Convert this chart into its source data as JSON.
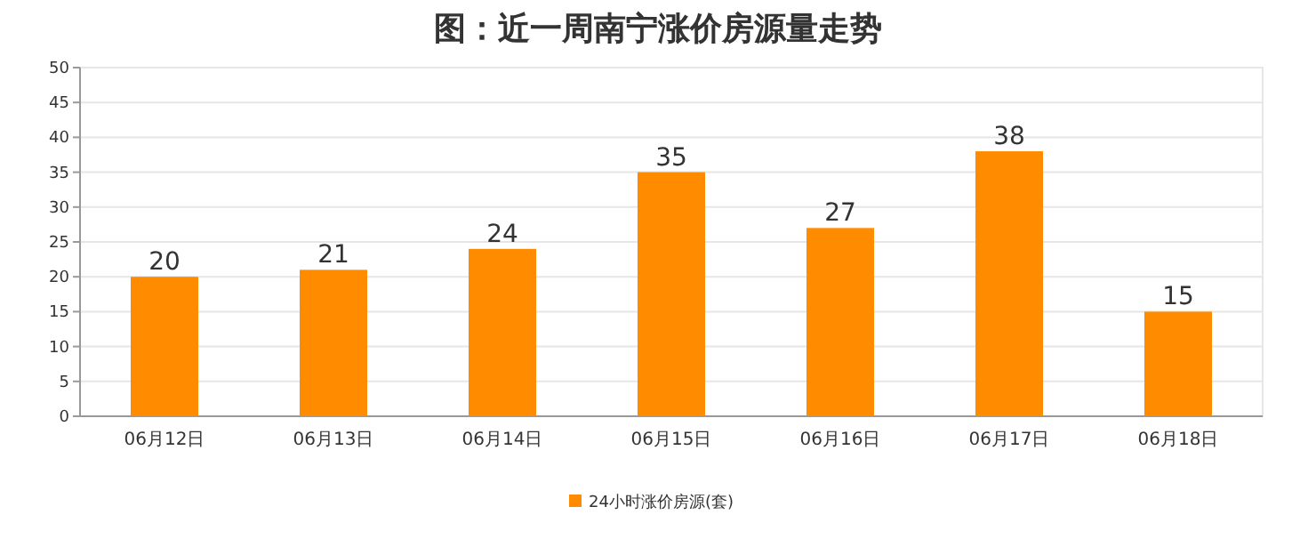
{
  "chart_data": {
    "type": "bar",
    "title": "图：近一周南宁涨价房源量走势",
    "categories": [
      "06月12日",
      "06月13日",
      "06月14日",
      "06月15日",
      "06月16日",
      "06月17日",
      "06月18日"
    ],
    "series": [
      {
        "name": "24小时涨价房源(套)",
        "color": "#ff8c00",
        "values": [
          20,
          21,
          24,
          35,
          27,
          38,
          15
        ]
      }
    ],
    "ylim": [
      0,
      50
    ],
    "yticks": [
      0,
      5,
      10,
      15,
      20,
      25,
      30,
      35,
      40,
      45,
      50
    ],
    "grid": "y",
    "data_labels": true,
    "legend": "bottom"
  }
}
